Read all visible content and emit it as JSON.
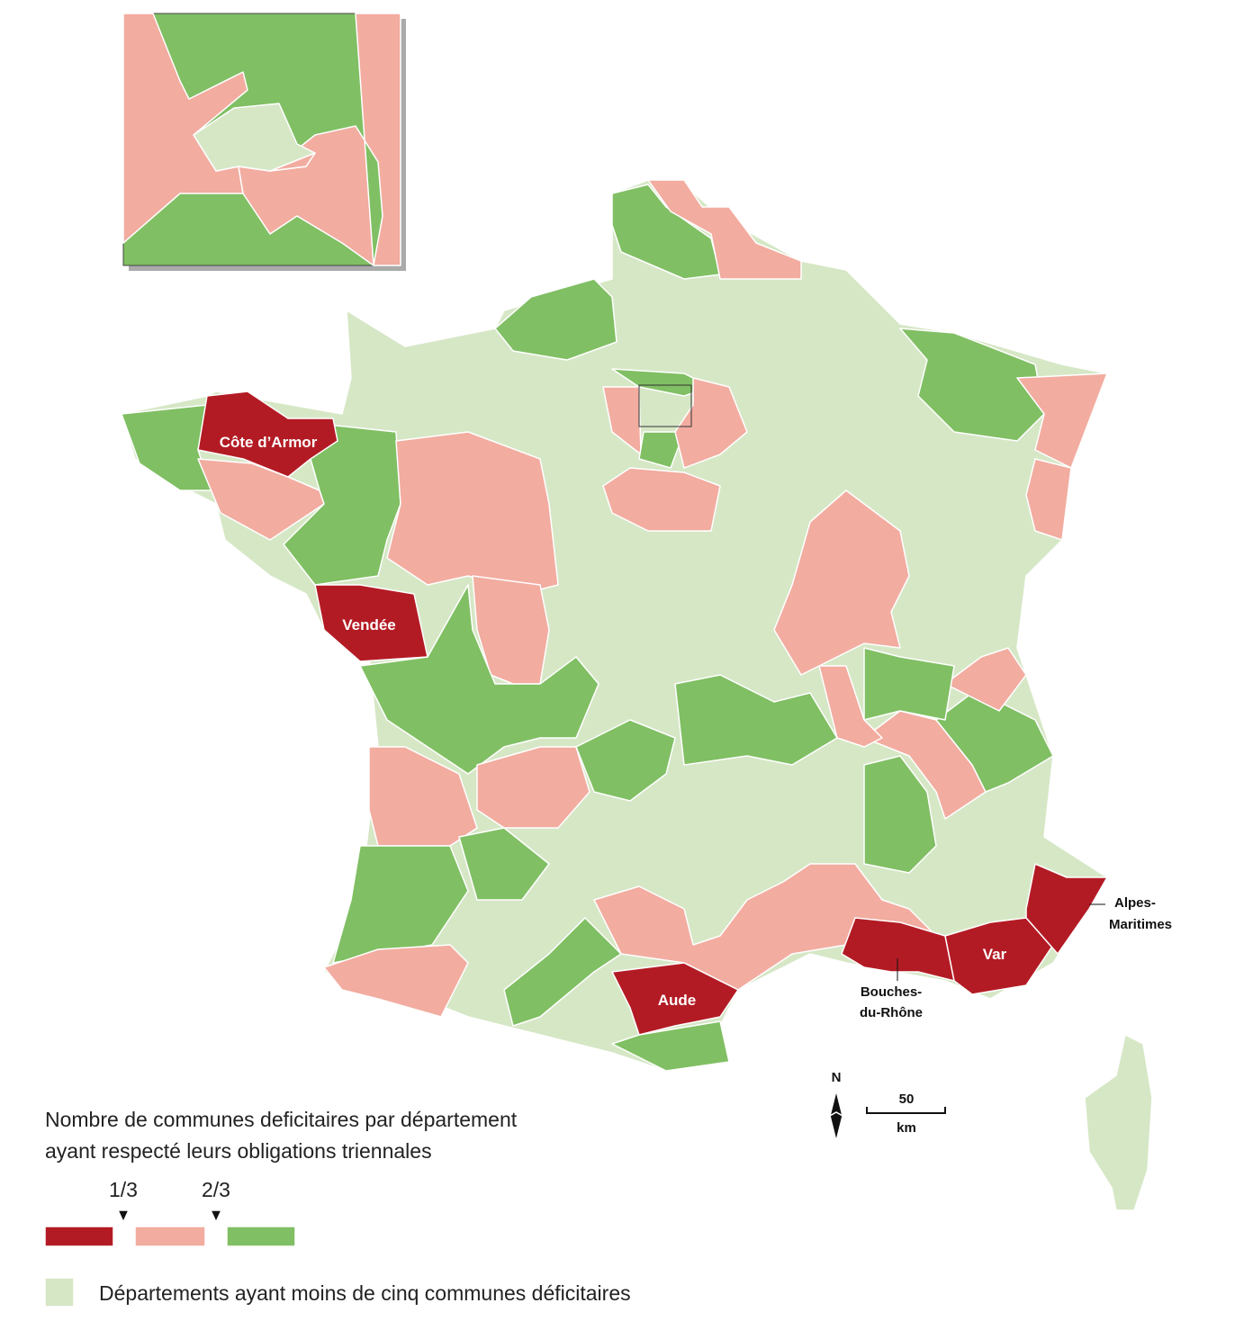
{
  "labels": {
    "cote_armor": "Côte d’Armor",
    "vendee": "Vendée",
    "aude": "Aude",
    "var": "Var",
    "alpes_maritimes": [
      "Alpes-",
      "Maritimes"
    ],
    "bouches_du_rhone": [
      "Bouches-",
      "du-Rhône"
    ]
  },
  "compass": "N",
  "scale": {
    "value": "50",
    "unit": "km"
  },
  "legend": {
    "title": [
      "Nombre de communes deficitaires par département",
      "ayant respecté leurs obligations triennales"
    ],
    "thresholds": [
      "1/3",
      "2/3"
    ],
    "note": "Départements ayant moins de cinq communes déficitaires"
  }
}
